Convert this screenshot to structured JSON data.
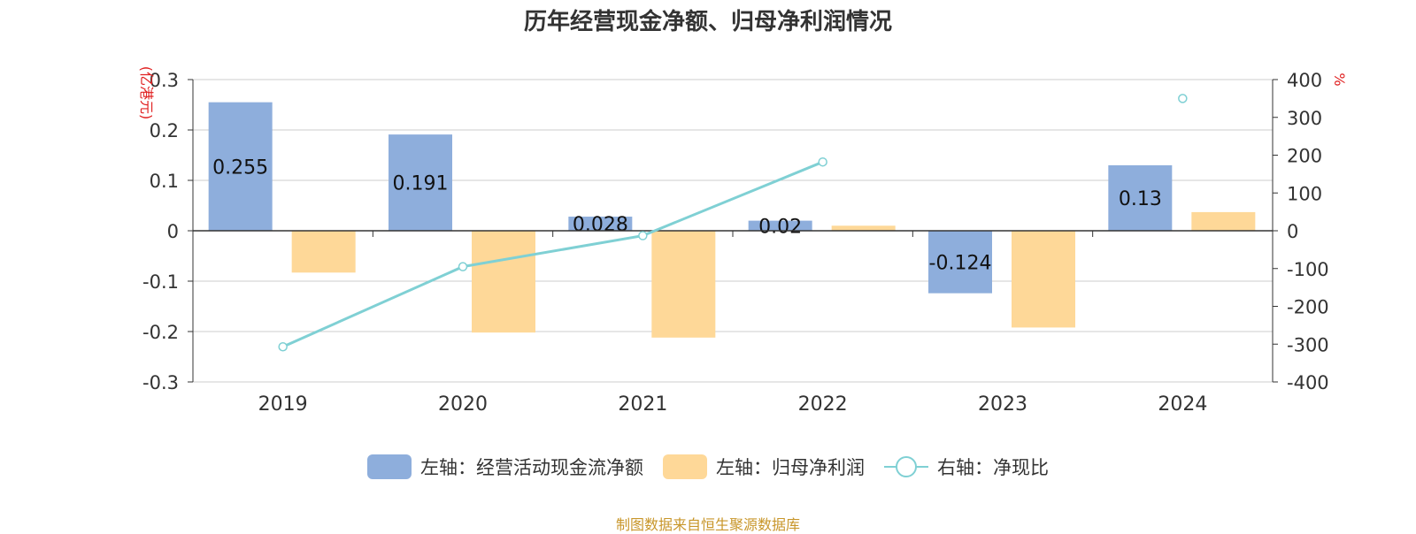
{
  "title": "历年经营现金净额、归母净利润情况",
  "source": "制图数据来自恒生聚源数据库",
  "legend": {
    "cash": "左轴：经营活动现金流净额",
    "profit": "左轴：归母净利润",
    "ratio": "右轴：净现比"
  },
  "colors": {
    "cash": "#8eaedc",
    "profit": "#fed898",
    "ratio": "#7fd0d4",
    "unit": "#e02020"
  },
  "chart_data": {
    "type": "bar",
    "categories": [
      "2019",
      "2020",
      "2021",
      "2022",
      "2023",
      "2024"
    ],
    "left_axis": {
      "unit": "(亿港元)",
      "ylim": [
        -0.3,
        0.3
      ],
      "ticks": [
        "0.3",
        "0.2",
        "0.1",
        "0",
        "-0.1",
        "-0.2",
        "-0.3"
      ]
    },
    "right_axis": {
      "unit": "%",
      "ylim": [
        -400,
        400
      ],
      "ticks": [
        "400",
        "300",
        "200",
        "100",
        "0",
        "-100",
        "-200",
        "-300",
        "-400"
      ]
    },
    "series": [
      {
        "name": "左轴：经营活动现金流净额",
        "type": "bar",
        "axis": "left",
        "values": [
          0.255,
          0.191,
          0.028,
          0.02,
          -0.124,
          0.13
        ],
        "labels": [
          "0.255",
          "0.191",
          "0.028",
          "0.02",
          "-0.124",
          "0.13"
        ]
      },
      {
        "name": "左轴：归母净利润",
        "type": "bar",
        "axis": "left",
        "values": [
          -0.083,
          -0.202,
          -0.212,
          0.01,
          -0.192,
          0.037
        ]
      },
      {
        "name": "右轴：净现比",
        "type": "line",
        "axis": "right",
        "values": [
          -307,
          -95,
          -13,
          182,
          null,
          350
        ]
      }
    ],
    "grid": true
  }
}
